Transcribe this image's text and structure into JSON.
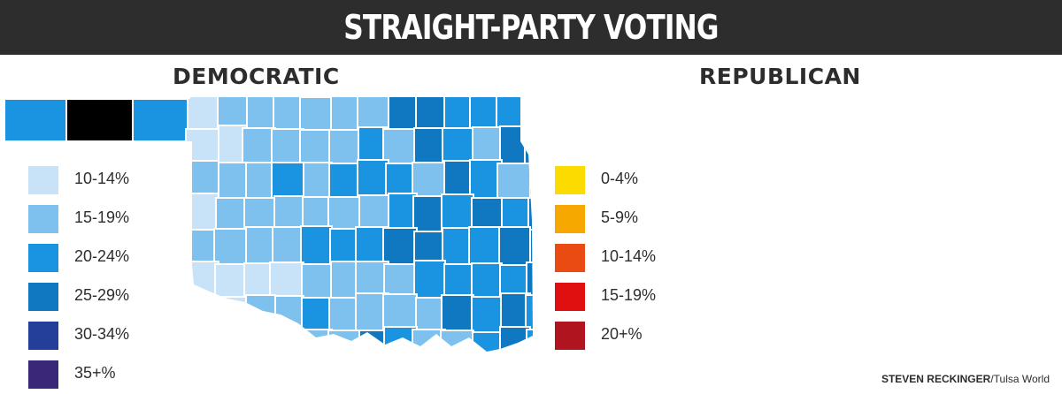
{
  "header": {
    "title": "STRAIGHT-PARTY VOTING"
  },
  "maps": [
    {
      "heading": "DEMOCRATIC",
      "legend": [
        {
          "label": "10-14%",
          "color": "#c8e2f7"
        },
        {
          "label": "15-19%",
          "color": "#7fc1ee"
        },
        {
          "label": "20-24%",
          "color": "#1a94e0"
        },
        {
          "label": "25-29%",
          "color": "#0f78c0"
        },
        {
          "label": "30-34%",
          "color": "#233f97"
        },
        {
          "label": "35+%",
          "color": "#3a2778"
        }
      ]
    },
    {
      "heading": "REPUBLICAN",
      "legend": [
        {
          "label": "0-4%",
          "color": "#fbdb00"
        },
        {
          "label": "5-9%",
          "color": "#f6a800"
        },
        {
          "label": "10-14%",
          "color": "#ea4b12"
        },
        {
          "label": "15-19%",
          "color": "#e01010"
        },
        {
          "label": "20+%",
          "color": "#b0141f"
        }
      ]
    }
  ],
  "credit": {
    "author": "STEVEN RECKINGER",
    "source": "/Tulsa World"
  }
}
